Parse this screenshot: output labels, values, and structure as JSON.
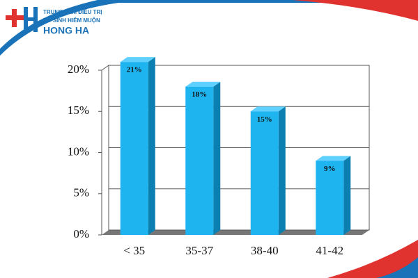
{
  "logo": {
    "line1": "TRUNG TÂM ĐIỀU TRỊ",
    "line2": "VÔ SINH HIẾM MUỘN",
    "name": "HONG HA"
  },
  "chart_data": {
    "type": "bar3d",
    "categories": [
      "< 35",
      "35-37",
      "38-40",
      "41-42"
    ],
    "values": [
      21,
      18,
      15,
      9
    ],
    "value_labels": [
      "21%",
      "18%",
      "15%",
      "9%"
    ],
    "color": "#1eb4f0",
    "ylim": [
      0,
      20
    ],
    "yticks": [
      {
        "value": 0,
        "label": "0%"
      },
      {
        "value": 5,
        "label": "5%"
      },
      {
        "value": 10,
        "label": "10%"
      },
      {
        "value": 15,
        "label": "15%"
      },
      {
        "value": 20,
        "label": "20%"
      }
    ],
    "grid": true
  }
}
